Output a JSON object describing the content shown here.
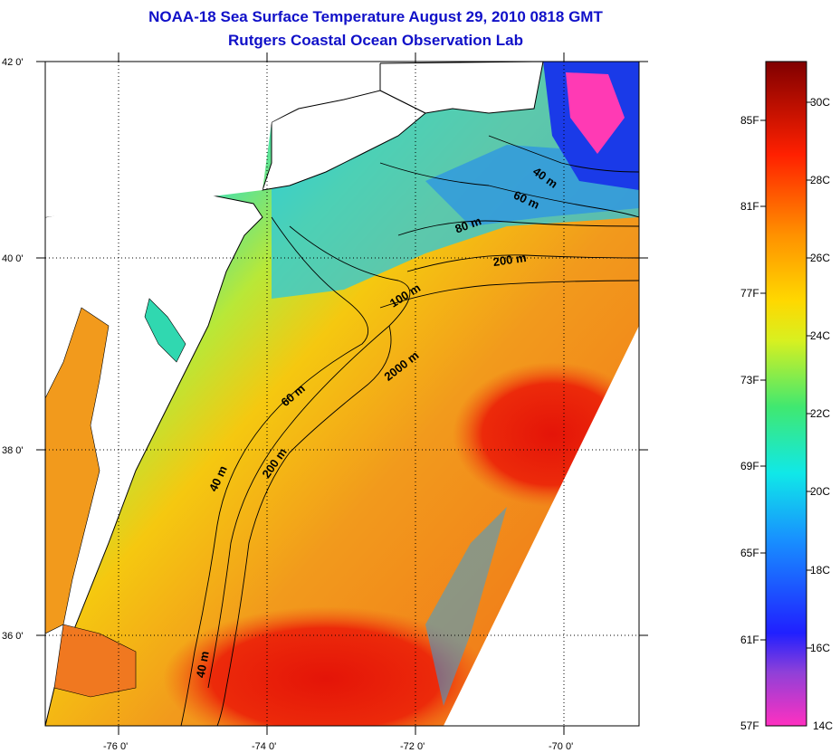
{
  "title": {
    "line1": "NOAA-18 Sea Surface Temperature August 29, 2010 0818 GMT",
    "line2": "Rutgers Coastal Ocean Observation Lab"
  },
  "axes": {
    "lat_labels": [
      "42 0'",
      "40 0'",
      "38 0'",
      "36 0'"
    ],
    "lon_labels": [
      "-76 0'",
      "-74 0'",
      "-72 0'",
      "-70 0'"
    ]
  },
  "contours": {
    "labels": [
      "40 m",
      "60 m",
      "80 m",
      "200 m",
      "100 m",
      "2000 m",
      "60 m",
      "40 m",
      "200 m",
      "40 m"
    ]
  },
  "colorbar": {
    "fahrenheit": [
      "85F",
      "81F",
      "77F",
      "73F",
      "69F",
      "65F",
      "61F",
      "57F"
    ],
    "celsius": [
      "30C",
      "28C",
      "26C",
      "24C",
      "22C",
      "20C",
      "18C",
      "16C",
      "14C"
    ]
  },
  "colors": {
    "title": "#1010c8",
    "land": "#ffffff",
    "warm_red": "#e81c0c",
    "orange": "#f27a1c",
    "yellow": "#f5d40a",
    "cyan": "#10d8d8",
    "blue": "#1432e0",
    "magenta": "#ff3ab4"
  }
}
